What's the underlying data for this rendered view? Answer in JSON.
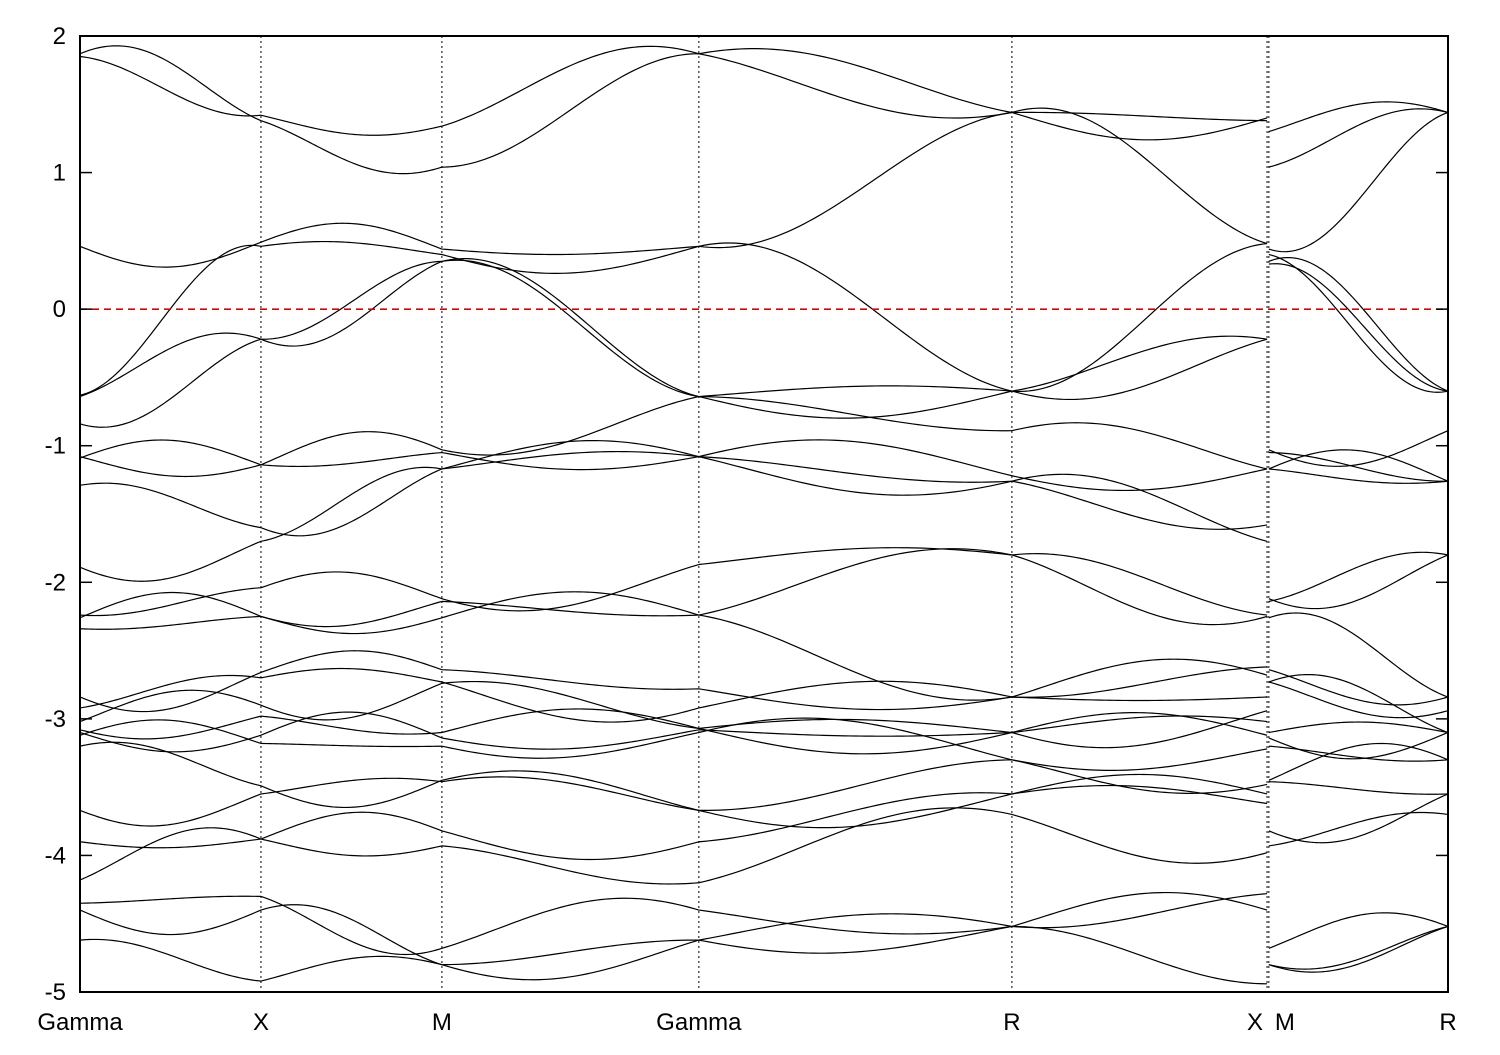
{
  "chart_data": {
    "type": "line",
    "title": "",
    "xlabel": "",
    "ylabel": "",
    "ylim": [
      -5,
      2
    ],
    "yticks": [
      2,
      1,
      0,
      -1,
      -2,
      -3,
      -4,
      -5
    ],
    "ytick_labels": [
      "2",
      "1",
      "0",
      "-1",
      "-2",
      "-3",
      "-4",
      "-5"
    ],
    "kpath": {
      "points": [
        "Gamma",
        "X",
        "M",
        "Gamma",
        "R",
        "X",
        "M",
        "R"
      ],
      "positions": [
        0,
        1,
        2,
        3.42,
        5.15,
        6.56,
        6.57,
        7.56
      ],
      "segments": [
        {
          "from": "Gamma",
          "to": "X",
          "x": [
            0,
            1
          ]
        },
        {
          "from": "X",
          "to": "M",
          "x": [
            1,
            2
          ]
        },
        {
          "from": "M",
          "to": "Gamma",
          "x": [
            2,
            3.42
          ]
        },
        {
          "from": "Gamma",
          "to": "R",
          "x": [
            3.42,
            5.15
          ]
        },
        {
          "from": "R",
          "to": "X",
          "x": [
            5.15,
            6.56
          ]
        },
        {
          "from": "M",
          "to": "R",
          "x": [
            6.57,
            7.56
          ]
        }
      ]
    },
    "fermi_level": 0,
    "reference_line_color": "#e00000",
    "series": [
      {
        "values": [
          1.87,
          1.38,
          1.04,
          1.87,
          1.44,
          1.4,
          1.04,
          1.44
        ]
      },
      {
        "values": [
          1.85,
          1.42,
          1.34,
          1.87,
          1.44,
          1.38,
          1.3,
          1.44
        ]
      },
      {
        "values": [
          0.46,
          0.49,
          0.44,
          0.46,
          1.44,
          0.48,
          0.44,
          1.44
        ]
      },
      {
        "values": [
          -0.63,
          0.46,
          0.4,
          0.46,
          -0.6,
          0.48,
          0.4,
          -0.6
        ]
      },
      {
        "values": [
          -0.64,
          -0.22,
          0.35,
          -0.64,
          -0.6,
          -0.22,
          0.35,
          -0.6
        ]
      },
      {
        "values": [
          -0.84,
          -0.22,
          0.35,
          -0.64,
          -0.6,
          -0.22,
          0.33,
          -0.6
        ]
      },
      {
        "values": [
          -1.08,
          -1.14,
          -1.03,
          -0.64,
          -0.89,
          -1.17,
          -1.03,
          -0.89
        ]
      },
      {
        "values": [
          -1.09,
          -1.14,
          -1.05,
          -1.08,
          -1.22,
          -1.17,
          -1.05,
          -1.26
        ]
      },
      {
        "values": [
          -1.29,
          -1.6,
          -1.17,
          -1.08,
          -1.26,
          -1.58,
          -1.17,
          -1.26
        ]
      },
      {
        "values": [
          -1.89,
          -1.7,
          -1.17,
          -1.08,
          -1.26,
          -1.7,
          -1.17,
          -1.26
        ]
      },
      {
        "values": [
          -2.24,
          -2.04,
          -2.12,
          -1.87,
          -1.8,
          -2.24,
          -2.12,
          -1.8
        ]
      },
      {
        "values": [
          -2.26,
          -2.25,
          -2.14,
          -2.24,
          -1.8,
          -2.25,
          -2.14,
          -1.8
        ]
      },
      {
        "values": [
          -2.34,
          -2.25,
          -2.26,
          -2.24,
          -2.84,
          -2.62,
          -2.26,
          -2.84
        ]
      },
      {
        "values": [
          -2.84,
          -2.66,
          -2.64,
          -2.78,
          -2.84,
          -2.68,
          -2.64,
          -2.84
        ]
      },
      {
        "values": [
          -2.92,
          -2.7,
          -2.73,
          -2.92,
          -2.84,
          -2.84,
          -2.73,
          -2.94
        ]
      },
      {
        "values": [
          -3.02,
          -2.9,
          -2.74,
          -3.07,
          -3.1,
          -2.94,
          -2.73,
          -3.1
        ]
      },
      {
        "values": [
          -3.08,
          -2.98,
          -3.1,
          -3.07,
          -3.1,
          -3.02,
          -3.1,
          -3.1
        ]
      },
      {
        "values": [
          -3.1,
          -3.12,
          -3.14,
          -3.08,
          -3.1,
          -3.12,
          -3.14,
          -3.1
        ]
      },
      {
        "values": [
          -3.12,
          -3.18,
          -3.2,
          -3.1,
          -3.3,
          -3.22,
          -3.2,
          -3.3
        ]
      },
      {
        "values": [
          -3.2,
          -3.49,
          -3.45,
          -3.67,
          -3.3,
          -3.48,
          -3.45,
          -3.3
        ]
      },
      {
        "values": [
          -3.67,
          -3.55,
          -3.46,
          -3.67,
          -3.55,
          -3.55,
          -3.46,
          -3.55
        ]
      },
      {
        "values": [
          -3.9,
          -3.88,
          -3.82,
          -3.9,
          -3.55,
          -3.62,
          -3.82,
          -3.55
        ]
      },
      {
        "values": [
          -4.18,
          -3.88,
          -3.93,
          -4.2,
          -3.7,
          -3.98,
          -3.93,
          -3.7
        ]
      },
      {
        "values": [
          -4.35,
          -4.3,
          -4.68,
          -4.4,
          -4.52,
          -4.28,
          -4.68,
          -4.52
        ]
      },
      {
        "values": [
          -4.4,
          -4.4,
          -4.8,
          -4.62,
          -4.52,
          -4.4,
          -4.8,
          -4.52
        ]
      },
      {
        "values": [
          -4.62,
          -4.92,
          -4.8,
          -4.62,
          -4.52,
          -4.94,
          -4.8,
          -4.52
        ]
      }
    ]
  }
}
